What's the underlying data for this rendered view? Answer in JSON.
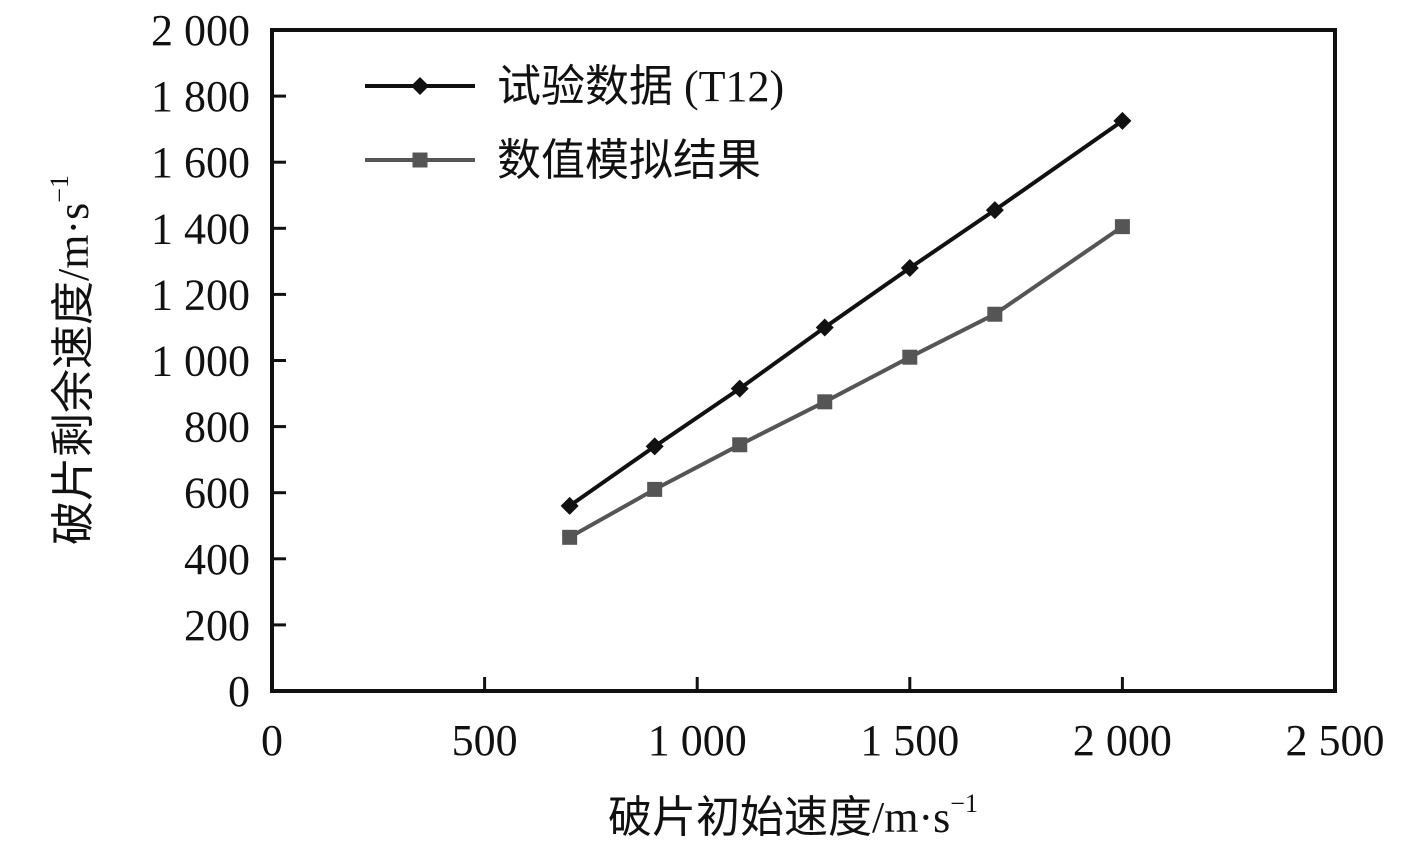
{
  "chart_data": {
    "type": "line",
    "title": "",
    "xlabel": "破片初始速度/m·s",
    "xlabel_sup": "−1",
    "ylabel": "破片剩余速度/m·s",
    "ylabel_sup": "−1",
    "xlim": [
      0,
      2500
    ],
    "ylim": [
      0,
      2000
    ],
    "xticks": [
      0,
      500,
      1000,
      1500,
      2000,
      2500
    ],
    "xtick_labels": [
      "0",
      "500",
      "1 000",
      "1 500",
      "2 000",
      "2 500"
    ],
    "yticks": [
      0,
      200,
      400,
      600,
      800,
      1000,
      1200,
      1400,
      1600,
      1800,
      2000
    ],
    "ytick_labels": [
      "0",
      "200",
      "400",
      "600",
      "800",
      "1 000",
      "1 200",
      "1 400",
      "1 600",
      "1 800",
      "2 000"
    ],
    "grid": false,
    "legend_position": "top-left",
    "series": [
      {
        "name": "试验数据 (T12)",
        "color": "#111111",
        "marker": "diamond",
        "x": [
          700,
          900,
          1100,
          1300,
          1500,
          1700,
          2000
        ],
        "y": [
          560,
          740,
          915,
          1100,
          1280,
          1455,
          1725
        ]
      },
      {
        "name": "数值模拟结果",
        "color": "#555555",
        "marker": "square",
        "x": [
          700,
          900,
          1100,
          1300,
          1500,
          1700,
          2000
        ],
        "y": [
          465,
          610,
          745,
          875,
          1010,
          1140,
          1405
        ]
      }
    ]
  }
}
